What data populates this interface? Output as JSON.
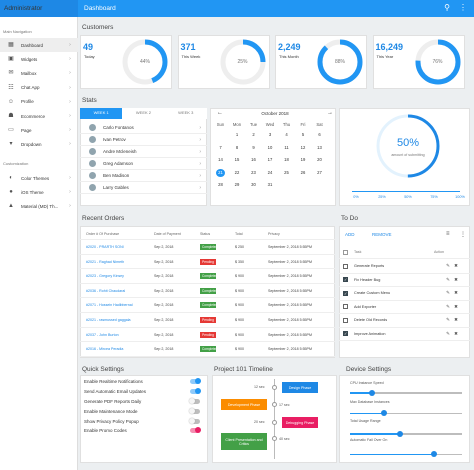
{
  "app": {
    "brand": "Administrator",
    "page_title": "Dashboard"
  },
  "sidebar": {
    "main_label": "Main Navigation",
    "items": [
      {
        "label": "Dashboard",
        "icon": "dashboard-icon"
      },
      {
        "label": "Widgets",
        "icon": "widgets-icon"
      },
      {
        "label": "Mailbox",
        "icon": "mailbox-icon"
      },
      {
        "label": "Chat App",
        "icon": "chat-icon"
      },
      {
        "label": "Profile",
        "icon": "profile-icon"
      },
      {
        "label": "Ecommerce",
        "icon": "cart-icon"
      },
      {
        "label": "Page",
        "icon": "page-icon"
      },
      {
        "label": "Dropdown",
        "icon": "dropdown-icon"
      }
    ],
    "custom_label": "Customization",
    "custom_items": [
      {
        "label": "Color Themes",
        "icon": "palette-icon"
      },
      {
        "label": "iOS Theme",
        "icon": "apple-icon"
      },
      {
        "label": "Material (MD) Th...",
        "icon": "android-icon"
      }
    ]
  },
  "customers": {
    "title": "Customers",
    "cards": [
      {
        "value": "49",
        "label": "Today",
        "percent": 44,
        "pct_label": "44%"
      },
      {
        "value": "371",
        "label": "This Week",
        "percent": 25,
        "pct_label": "25%"
      },
      {
        "value": "2,249",
        "label": "This Month",
        "percent": 88,
        "pct_label": "88%"
      },
      {
        "value": "16,249",
        "label": "This Year",
        "percent": 76,
        "pct_label": "76%"
      }
    ]
  },
  "stats": {
    "title": "Stats",
    "tabs": [
      "WEEK 1",
      "WEEK 2",
      "WEEK 3"
    ],
    "people": [
      "Carlo Fontanos",
      "Ivan Petrov",
      "Andre Mcleneish",
      "Greg Adamson",
      "Ben Madison",
      "Larry Gables"
    ]
  },
  "calendar": {
    "month": "October 2018",
    "days_header": [
      "Sun",
      "Mon",
      "Tue",
      "Wed",
      "Thu",
      "Fri",
      "Sat"
    ],
    "weeks": [
      [
        "",
        "1",
        "2",
        "3",
        "4",
        "5",
        "6"
      ],
      [
        "7",
        "8",
        "9",
        "10",
        "11",
        "12",
        "13"
      ],
      [
        "14",
        "15",
        "16",
        "17",
        "18",
        "19",
        "20"
      ],
      [
        "21",
        "22",
        "23",
        "24",
        "25",
        "26",
        "27"
      ],
      [
        "28",
        "29",
        "30",
        "31",
        "",
        "",
        ""
      ]
    ],
    "selected": "21"
  },
  "progress": {
    "value": "50%",
    "percent": 50,
    "caption": "amount of submitting",
    "ticks": [
      "0%",
      "25%",
      "50%",
      "75%",
      "100%"
    ]
  },
  "orders": {
    "title": "Recent Orders",
    "headers": [
      "Order # Of Purchase",
      "Date of Payment",
      "Status",
      "Total",
      "Privacy"
    ],
    "rows": [
      [
        "#2020 - PRARTH SONI",
        "Sep 2, 2018",
        "Completed",
        "$ 250",
        "September 2, 2018 5:55PM"
      ],
      [
        "#2021 - Raghad Nimeth",
        "Sep 2, 2018",
        "Pending",
        "$ 350",
        "September 2, 2018 5:55PM"
      ],
      [
        "#2023 - Gregory Kinsey",
        "Sep 2, 2018",
        "Completed",
        "$ 900",
        "September 2, 2018 5:55PM"
      ],
      [
        "#2036 - Rohit Chaudaral",
        "Sep 2, 2018",
        "Completed",
        "$ 900",
        "September 2, 2018 5:55PM"
      ],
      [
        "#2071 - Hossein Hadibbernal",
        "Sep 2, 2018",
        "Completed",
        "$ 900",
        "September 2, 2018 5:55PM"
      ],
      [
        "#2021 - rasmussed gaggala",
        "Sep 2, 2018",
        "Pending",
        "$ 900",
        "September 2, 2018 5:55PM"
      ],
      [
        "#2037 - John Burton",
        "Sep 2, 2018",
        "Pending",
        "$ 900",
        "September 2, 2018 5:55PM"
      ],
      [
        "#2016 - Mircea Peradia",
        "Sep 2, 2018",
        "Completed",
        "$ 900",
        "September 2, 2018 5:55PM"
      ]
    ],
    "status_colors": {
      "Completed": "#43a047",
      "Pending": "#e53935"
    }
  },
  "todo": {
    "title": "To Do",
    "add": "ADD",
    "remove": "REMOVE",
    "col_task": "Task",
    "col_action": "Action",
    "items": [
      {
        "text": "Generate Reports",
        "checked": false
      },
      {
        "text": "Fix Header Bug",
        "checked": true
      },
      {
        "text": "Create Custom Menu",
        "checked": true
      },
      {
        "text": "Add Exporter",
        "checked": false
      },
      {
        "text": "Delete Old Records",
        "checked": false
      },
      {
        "text": "Improve Animation",
        "checked": true
      }
    ]
  },
  "quick": {
    "title": "Quick Settings",
    "items": [
      {
        "text": "Enable Realtime Notifications",
        "on": true,
        "color": "#2196f3"
      },
      {
        "text": "Send Automatic Email Updates",
        "on": true,
        "color": "#2196f3"
      },
      {
        "text": "Generate PDF Reports Daily",
        "on": false,
        "color": "#2196f3"
      },
      {
        "text": "Enable Maintenance Mode",
        "on": false,
        "color": "#e53935"
      },
      {
        "text": "Show Privacy Policy Popup",
        "on": false,
        "color": "#e53935"
      },
      {
        "text": "Enable Promo Codes",
        "on": true,
        "color": "#e91e63"
      }
    ]
  },
  "timeline": {
    "title": "Project 101 Timeline",
    "events": [
      {
        "time": "12 sec",
        "label": "Design Phase",
        "color": "#1e88e5",
        "side": "right"
      },
      {
        "time": "",
        "label": "Development Phase",
        "color": "#fb8c00",
        "side": "left"
      },
      {
        "time": "20 sec",
        "label": "Debugging Phase",
        "color": "#e91e63",
        "side": "right"
      },
      {
        "time": "",
        "label": "Client Presentation and Critics",
        "color": "#43a047",
        "side": "left"
      }
    ],
    "extra_times": [
      "17 sec",
      "40 sec"
    ]
  },
  "device": {
    "title": "Device Settings",
    "items": [
      {
        "label": "CPU Instance Speed",
        "value": 20
      },
      {
        "label": "Max Database Instances",
        "value": 30
      },
      {
        "label": "Total Usage Range",
        "value": 45
      },
      {
        "label": "Automatic Fail Over On",
        "value": 75
      }
    ]
  }
}
